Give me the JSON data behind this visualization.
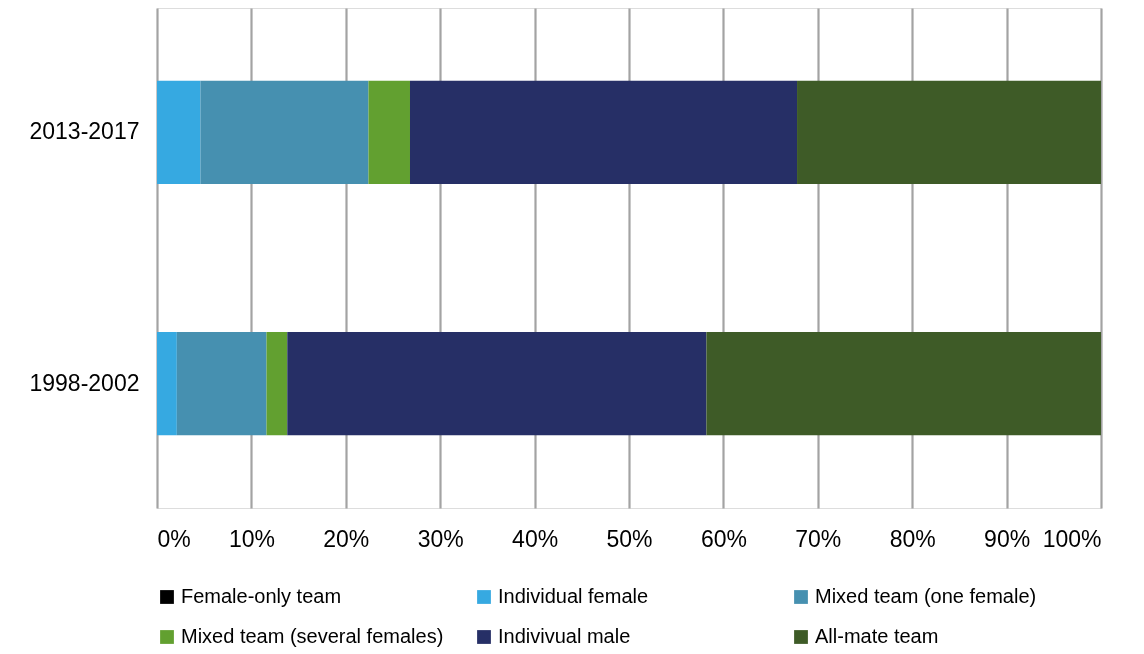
{
  "chart_data": {
    "type": "bar",
    "orientation": "horizontal",
    "stacked": true,
    "categories": [
      "2013-2017",
      "1998-2002"
    ],
    "series": [
      {
        "name": "Female-only team",
        "color": "#000000",
        "values": [
          0,
          0
        ]
      },
      {
        "name": "Individual female",
        "color": "#36a9e1",
        "values": [
          4.6,
          2.1
        ]
      },
      {
        "name": "Mixed team (one female)",
        "color": "#4690b0",
        "values": [
          17.8,
          9.5
        ]
      },
      {
        "name": "Mixed team (several females)",
        "color": "#62a030",
        "values": [
          4.4,
          2.2
        ]
      },
      {
        "name": "Indivivual male",
        "color": "#262f66",
        "values": [
          41.0,
          44.4
        ]
      },
      {
        "name": "All-mate team",
        "color": "#3e5b27",
        "values": [
          32.2,
          41.8
        ]
      }
    ],
    "xlim": [
      0,
      100
    ],
    "xticks": [
      {
        "value": 0,
        "label": "0%"
      },
      {
        "value": 10,
        "label": "10%"
      },
      {
        "value": 20,
        "label": "20%"
      },
      {
        "value": 30,
        "label": "30%"
      },
      {
        "value": 40,
        "label": "40%"
      },
      {
        "value": 50,
        "label": "50%"
      },
      {
        "value": 60,
        "label": "60%"
      },
      {
        "value": 70,
        "label": "70%"
      },
      {
        "value": 80,
        "label": "80%"
      },
      {
        "value": 90,
        "label": "90%"
      },
      {
        "value": 100,
        "label": "100%"
      }
    ],
    "grid": "x",
    "legend": "bottom"
  }
}
